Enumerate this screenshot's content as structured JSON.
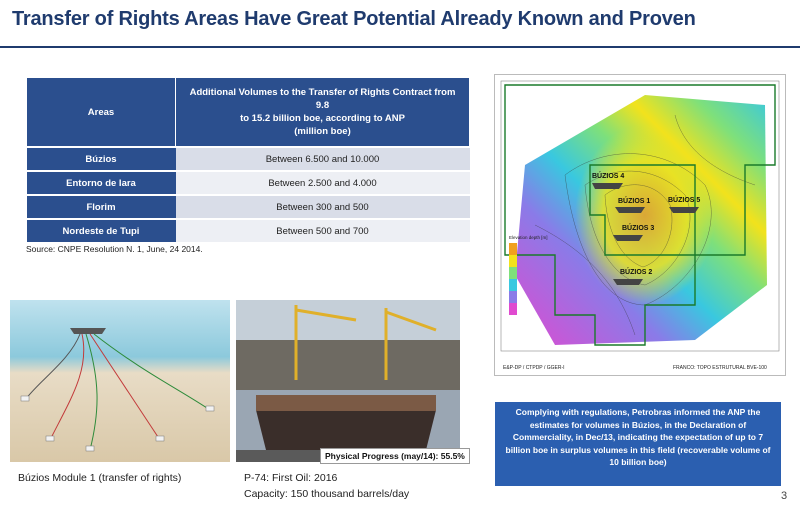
{
  "title": "Transfer of Rights Areas Have Great Potential Already Known and Proven",
  "table": {
    "header_areas": "Areas",
    "header_volumes_line1": "Additional Volumes to the Transfer of Rights Contract from 9.8",
    "header_volumes_line2": "to 15.2 billion boe, according to ANP",
    "header_volumes_line3": "(million boe)",
    "rows": [
      {
        "area": "Búzios",
        "volume": "Between 6.500 and 10.000"
      },
      {
        "area": "Entorno de Iara",
        "volume": "Between 2.500 and 4.000"
      },
      {
        "area": "Florim",
        "volume": "Between 300 and 500"
      },
      {
        "area": "Nordeste de Tupi",
        "volume": "Between 500 and 700"
      }
    ]
  },
  "source": "Source: CNPE Resolution N. 1, June, 24 2014.",
  "map": {
    "labels": [
      "BÚZIOS 4",
      "BÚZIOS 1",
      "BÚZIOS 5",
      "BÚZIOS 3",
      "BÚZIOS 2"
    ],
    "legend_title": "Elevation depth [m]",
    "footer_left": "E&P-DP / CTPDP / GGER-I",
    "footer_right": "FRANCO: TOPO ESTRUTURAL BVE-100",
    "colors": {
      "deep": "#e04ad0",
      "mid": "#39c8e0",
      "shallow": "#f2e21c",
      "crest": "#f0a020"
    }
  },
  "callout": "Complying with regulations, Petrobras informed the ANP the estimates for volumes in Búzios, in the Declaration of Commerciality, in Dec/13, indicating the expectation of up to 7 billion boe in surplus volumes in this field (recoverable volume of 10 billion boe)",
  "images": {
    "caption_subsea": "Búzios Module 1 (transfer of rights)",
    "caption_p74_line1": "P-74: First Oil: 2016",
    "caption_p74_line2": "Capacity: 150 thousand barrels/day",
    "physical_progress": "Physical Progress (may/14): 55.5%"
  },
  "page_number": "3"
}
